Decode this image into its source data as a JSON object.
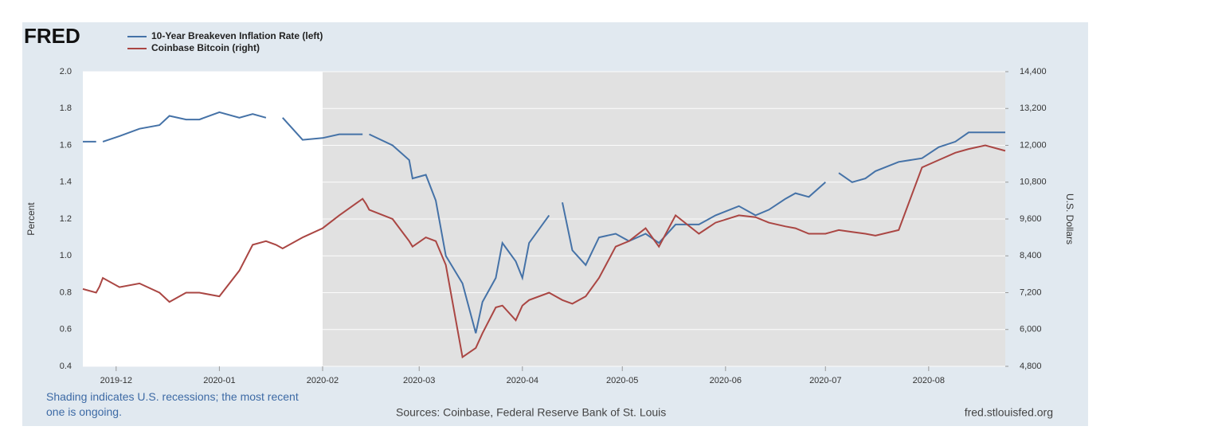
{
  "chart_data": {
    "type": "line",
    "logo": "FRED",
    "ylabel": "Percent",
    "y2label": "U.S. Dollars",
    "note": "Shading indicates U.S. recessions; the most recent one is ongoing.",
    "source": "Sources: Coinbase, Federal Reserve Bank of St. Louis",
    "site": "fred.stlouisfed.org",
    "recession_start": "2020-02-01",
    "xlim": [
      "2019-11-21",
      "2020-08-24"
    ],
    "xticks": [
      {
        "value": "2019-12-01",
        "label": "2019-12"
      },
      {
        "value": "2020-01-01",
        "label": "2020-01"
      },
      {
        "value": "2020-02-01",
        "label": "2020-02"
      },
      {
        "value": "2020-03-01",
        "label": "2020-03"
      },
      {
        "value": "2020-04-01",
        "label": "2020-04"
      },
      {
        "value": "2020-05-01",
        "label": "2020-05"
      },
      {
        "value": "2020-06-01",
        "label": "2020-06"
      },
      {
        "value": "2020-07-01",
        "label": "2020-07"
      },
      {
        "value": "2020-08-01",
        "label": "2020-08"
      }
    ],
    "ylim": [
      0.4,
      2.0
    ],
    "yticks": [
      0.4,
      0.6,
      0.8,
      {
        "value": 1.0,
        "label": "1.0"
      },
      1.2,
      1.4,
      1.6,
      1.8,
      {
        "value": 2.0,
        "label": "2.0"
      }
    ],
    "y2lim": [
      4800,
      14400
    ],
    "y2ticks": [
      {
        "value": 4800,
        "label": "4,800"
      },
      {
        "value": 6000,
        "label": "6,000"
      },
      {
        "value": 7200,
        "label": "7,200"
      },
      {
        "value": 8400,
        "label": "8,400"
      },
      {
        "value": 9600,
        "label": "9,600"
      },
      {
        "value": 10800,
        "label": "10,800"
      },
      {
        "value": 12000,
        "label": "12,000"
      },
      {
        "value": 13200,
        "label": "13,200"
      },
      {
        "value": 14400,
        "label": "14,400"
      }
    ],
    "x": [
      "2019-11-21",
      "2019-11-25",
      "2019-11-26",
      "2019-11-27",
      "2019-12-02",
      "2019-12-08",
      "2019-12-14",
      "2019-12-17",
      "2019-12-22",
      "2019-12-26",
      "2020-01-01",
      "2020-01-07",
      "2020-01-11",
      "2020-01-15",
      "2020-01-18",
      "2020-01-20",
      "2020-01-26",
      "2020-02-01",
      "2020-02-06",
      "2020-02-13",
      "2020-02-14",
      "2020-02-15",
      "2020-02-22",
      "2020-02-27",
      "2020-02-28",
      "2020-03-03",
      "2020-03-06",
      "2020-03-09",
      "2020-03-14",
      "2020-03-18",
      "2020-03-20",
      "2020-03-24",
      "2020-03-26",
      "2020-03-30",
      "2020-04-01",
      "2020-04-03",
      "2020-04-09",
      "2020-04-11",
      "2020-04-13",
      "2020-04-16",
      "2020-04-20",
      "2020-04-24",
      "2020-04-29",
      "2020-05-03",
      "2020-05-08",
      "2020-05-12",
      "2020-05-17",
      "2020-05-24",
      "2020-05-29",
      "2020-06-05",
      "2020-06-10",
      "2020-06-14",
      "2020-06-19",
      "2020-06-22",
      "2020-06-26",
      "2020-07-01",
      "2020-07-03",
      "2020-07-05",
      "2020-07-09",
      "2020-07-13",
      "2020-07-16",
      "2020-07-23",
      "2020-07-30",
      "2020-08-04",
      "2020-08-09",
      "2020-08-13",
      "2020-08-18",
      "2020-08-24"
    ],
    "series": [
      {
        "name": "10-Year Breakeven Inflation Rate (left)",
        "color": "#4572a7",
        "values": [
          1.62,
          1.62,
          null,
          1.62,
          1.65,
          1.69,
          1.71,
          1.76,
          1.74,
          1.74,
          1.78,
          1.75,
          1.77,
          1.75,
          null,
          1.75,
          1.63,
          1.64,
          1.66,
          1.66,
          null,
          1.66,
          1.6,
          1.52,
          1.42,
          1.44,
          1.3,
          1.0,
          0.85,
          0.58,
          0.75,
          0.88,
          1.07,
          0.97,
          0.88,
          1.07,
          1.22,
          null,
          1.29,
          1.03,
          0.95,
          1.1,
          1.12,
          1.08,
          1.12,
          1.07,
          1.17,
          1.17,
          1.22,
          1.27,
          1.22,
          1.25,
          1.31,
          1.34,
          1.32,
          1.4,
          null,
          1.45,
          1.4,
          1.42,
          1.46,
          1.51,
          1.53,
          1.59,
          1.62,
          1.67,
          1.67,
          1.67
        ]
      },
      {
        "name": "Coinbase Bitcoin (right)",
        "color": "#aa4643",
        "axis": "y2",
        "values": [
          7320,
          7200,
          7400,
          7680,
          7380,
          7500,
          7200,
          6900,
          7200,
          7200,
          7080,
          7920,
          8760,
          8880,
          8760,
          8640,
          9000,
          9300,
          9720,
          10260,
          10100,
          9900,
          9600,
          8880,
          8700,
          9000,
          8880,
          8100,
          5100,
          5400,
          5880,
          6720,
          6780,
          6300,
          6780,
          6960,
          7200,
          7080,
          6960,
          6840,
          7080,
          7680,
          8700,
          8880,
          9300,
          8700,
          9720,
          9120,
          9480,
          9720,
          9660,
          9480,
          9360,
          9300,
          9120,
          9120,
          9180,
          9240,
          9180,
          9120,
          9060,
          9240,
          11280,
          11520,
          11760,
          11880,
          12000,
          11820
        ]
      }
    ]
  }
}
